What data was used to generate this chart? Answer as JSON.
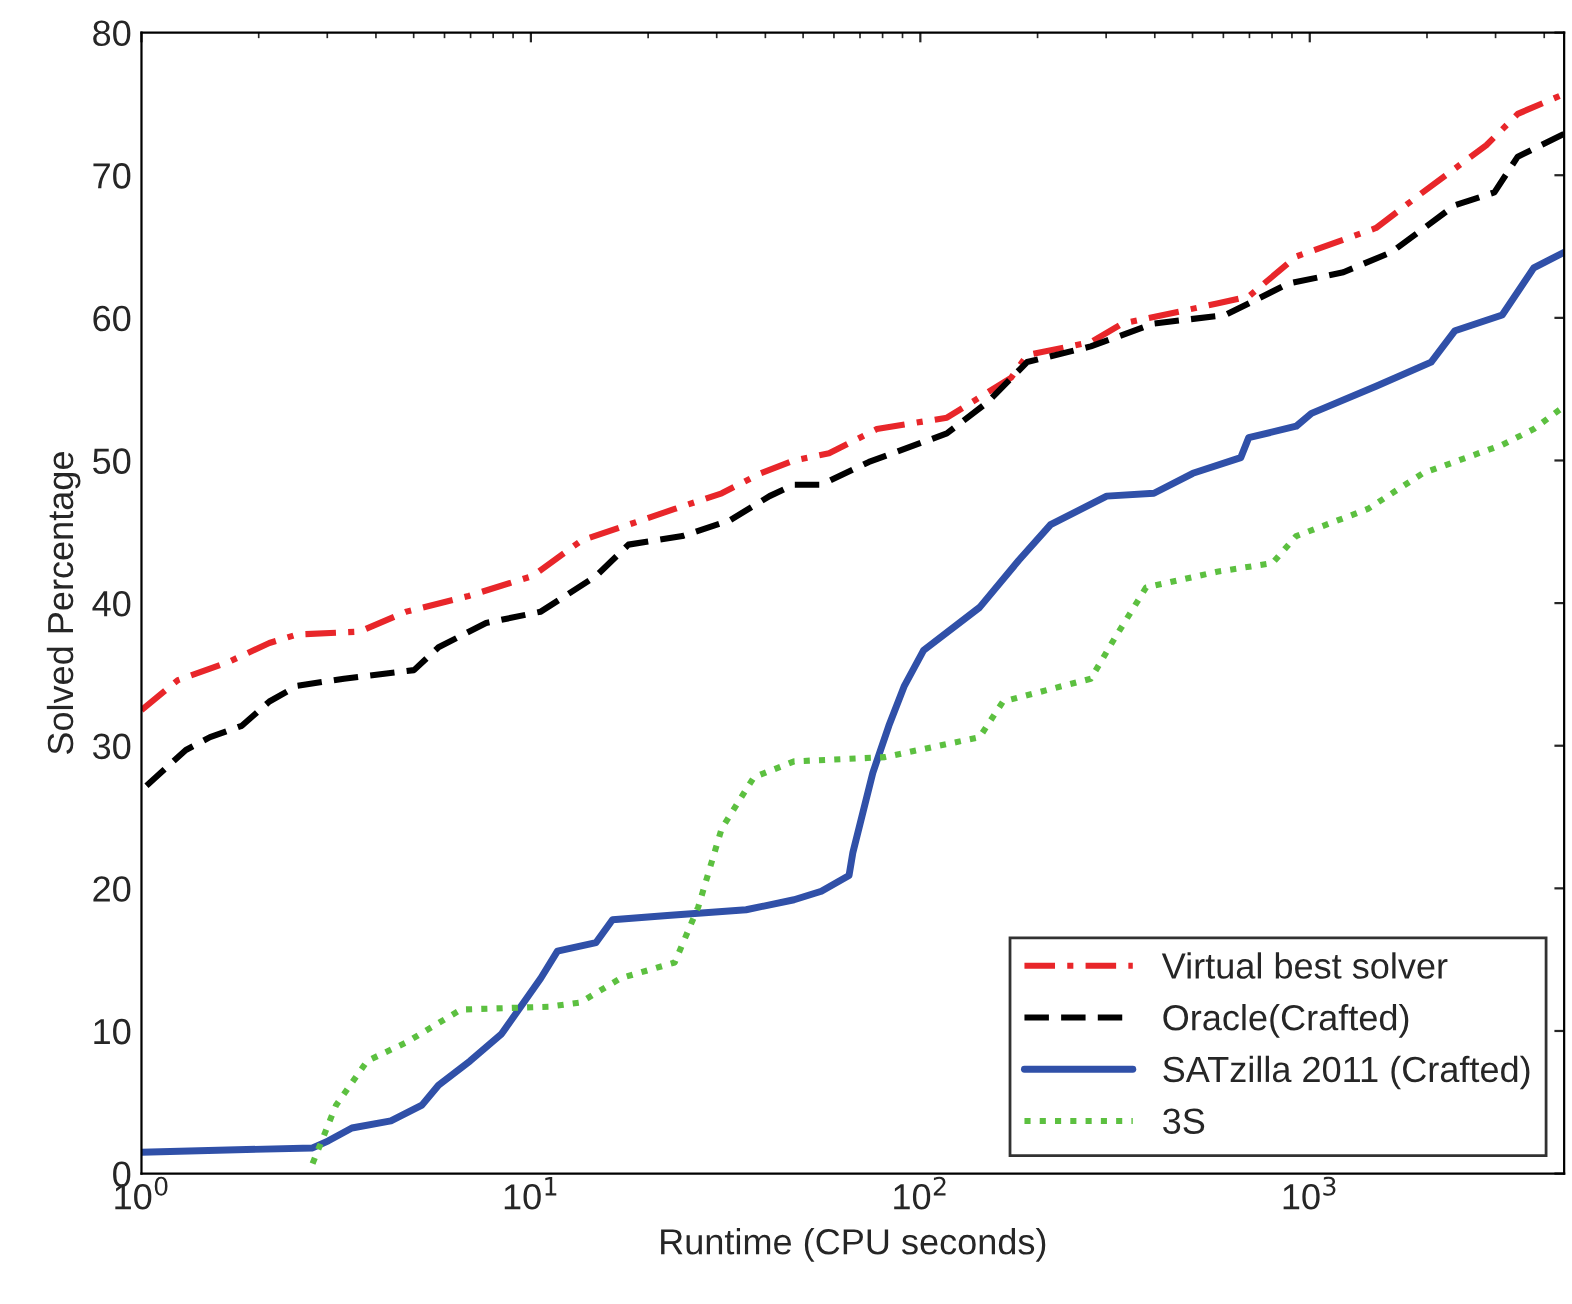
{
  "chart_data": {
    "type": "line",
    "xlabel": "Runtime (CPU seconds)",
    "ylabel": "Solved Percentage",
    "log": "x",
    "xlim": [
      1,
      4500
    ],
    "xticks": [
      {
        "value": 1,
        "label": "10$^{0}$"
      },
      {
        "value": 10,
        "label": "10$^{1}$"
      },
      {
        "value": 100,
        "label": "10$^{2}$"
      },
      {
        "value": 1000,
        "label": "10$^{3}$"
      }
    ],
    "ylim": [
      0,
      80
    ],
    "yticks": [
      0,
      10,
      20,
      30,
      40,
      50,
      60,
      70,
      80
    ],
    "grid": false,
    "legend": "bottom right",
    "marker": "none",
    "series": [
      {
        "name": "Virtual best solver",
        "color": "#e8262a",
        "line_style": "dashdot",
        "x": [
          1,
          1.24,
          1.65,
          2.13,
          2.51,
          3.63,
          4.79,
          6.92,
          10.1,
          13.5,
          17.8,
          23.4,
          30.9,
          38.9,
          47.4,
          58.3,
          77.3,
          117,
          171,
          188,
          274,
          330,
          578,
          697,
          923,
          1480,
          1950,
          2840,
          3420,
          4500
        ],
        "values": [
          32.5,
          34.6,
          35.8,
          37.2,
          37.8,
          38.0,
          39.4,
          40.5,
          41.9,
          44.4,
          45.5,
          46.6,
          47.7,
          49.1,
          50.0,
          50.5,
          52.2,
          53.0,
          55.8,
          57.4,
          58.3,
          59.6,
          61.0,
          61.5,
          64.3,
          66.3,
          68.8,
          72.1,
          74.3,
          75.7
        ]
      },
      {
        "name": "Oracle(Crafted)",
        "color": "#000000",
        "line_style": "dashed",
        "x": [
          1.03,
          1.3,
          1.5,
          1.81,
          2.13,
          2.51,
          3.31,
          5.01,
          5.79,
          7.67,
          10.6,
          14.7,
          17.8,
          24.5,
          32.4,
          41.0,
          47.4,
          55.7,
          73.8,
          117,
          149,
          188,
          274,
          398,
          607,
          881,
          1220,
          1620,
          2360,
          2980,
          3420,
          4500
        ],
        "values": [
          27.2,
          29.7,
          30.6,
          31.4,
          33.1,
          34.2,
          34.7,
          35.3,
          36.9,
          38.6,
          39.4,
          41.9,
          44.1,
          44.7,
          45.8,
          47.5,
          48.3,
          48.3,
          49.9,
          51.9,
          54.1,
          56.9,
          58.0,
          59.6,
          60.2,
          62.4,
          63.2,
          64.6,
          67.9,
          68.8,
          71.3,
          72.9
        ]
      },
      {
        "name": "SATzilla 2011 (Crafted)",
        "color": "#3050a8",
        "line_style": "solid",
        "x": [
          1,
          2.75,
          3.02,
          3.47,
          4.37,
          5.25,
          5.79,
          6.98,
          8.41,
          10.6,
          11.7,
          14.7,
          16.2,
          22.4,
          35.7,
          47.4,
          55.7,
          65.6,
          67.1,
          75.5,
          83.0,
          91.0,
          102,
          142,
          179,
          216,
          301,
          398,
          501,
          665,
          697,
          923,
          1010,
          1480,
          2050,
          2360,
          3120,
          3760,
          4500
        ],
        "values": [
          1.5,
          1.8,
          2.3,
          3.2,
          3.7,
          4.8,
          6.2,
          7.9,
          9.8,
          13.7,
          15.6,
          16.2,
          17.8,
          18.1,
          18.5,
          19.2,
          19.8,
          20.9,
          22.5,
          28.1,
          31.4,
          34.2,
          36.7,
          39.7,
          43.0,
          45.5,
          47.5,
          47.7,
          49.1,
          50.2,
          51.6,
          52.4,
          53.3,
          55.2,
          56.9,
          59.1,
          60.2,
          63.5,
          64.6
        ]
      },
      {
        "name": "3S",
        "color": "#5cc040",
        "line_style": "dotted",
        "x": [
          2.75,
          3.16,
          3.8,
          4.79,
          6.61,
          11.1,
          13.4,
          17.0,
          23.4,
          26.9,
          30.9,
          37.4,
          47.4,
          81.1,
          142,
          163,
          274,
          315,
          380,
          578,
          802,
          923,
          1410,
          1950,
          3120,
          3760,
          4500
        ],
        "values": [
          0.7,
          4.8,
          7.9,
          9.2,
          11.5,
          11.7,
          12.0,
          13.7,
          14.8,
          18.7,
          24.2,
          27.8,
          28.9,
          29.2,
          30.6,
          33.1,
          34.7,
          37.5,
          41.1,
          42.2,
          42.8,
          44.7,
          46.6,
          49.1,
          51.1,
          52.2,
          53.8
        ]
      }
    ]
  }
}
